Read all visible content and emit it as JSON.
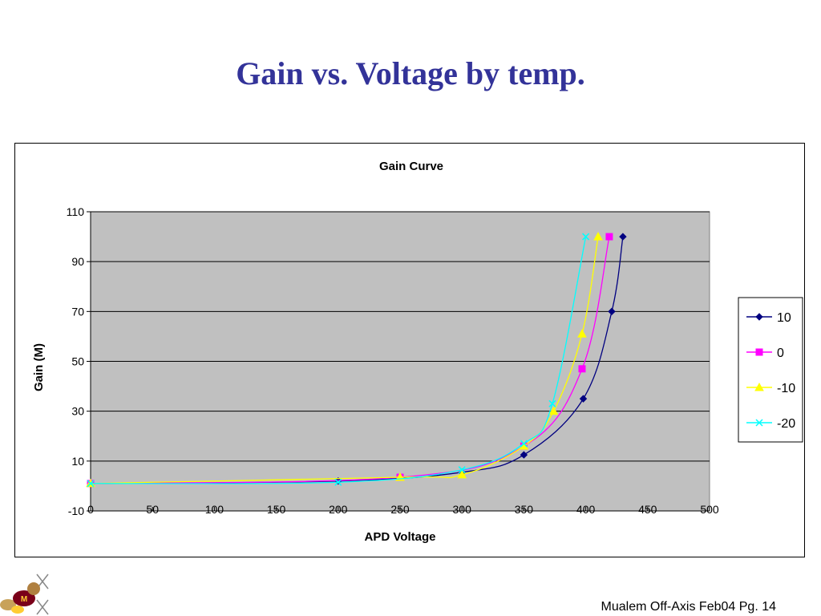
{
  "slide": {
    "title": "Gain vs. Voltage by temp.",
    "footer": "Mualem Off-Axis Feb04 Pg. 14",
    "logo_icon": "gopher-mascot-icon"
  },
  "chart_data": {
    "type": "line",
    "title": "Gain Curve",
    "xlabel": "APD Voltage",
    "ylabel": "Gain (M)",
    "xlim": [
      0,
      500
    ],
    "ylim": [
      -10,
      110
    ],
    "xticks": [
      0,
      50,
      100,
      150,
      200,
      250,
      300,
      350,
      400,
      450,
      500
    ],
    "yticks": [
      -10,
      10,
      30,
      50,
      70,
      90,
      110
    ],
    "grid": "horizontal",
    "plot_background": "#c0c0c0",
    "legend_position": "right",
    "series": [
      {
        "name": "10",
        "color": "#000080",
        "marker": "diamond",
        "points": [
          [
            0,
            1
          ],
          [
            200,
            2
          ],
          [
            300,
            5.5
          ],
          [
            350,
            12.5
          ],
          [
            398,
            35
          ],
          [
            421,
            70
          ],
          [
            430,
            100
          ]
        ]
      },
      {
        "name": "0",
        "color": "#ff00ff",
        "marker": "square",
        "points": [
          [
            0,
            1
          ],
          [
            250,
            3.5
          ],
          [
            350,
            16
          ],
          [
            397,
            47
          ],
          [
            419,
            100
          ]
        ]
      },
      {
        "name": "-10",
        "color": "#ffff00",
        "marker": "triangle",
        "points": [
          [
            0,
            1
          ],
          [
            250,
            3.5
          ],
          [
            300,
            4.5
          ],
          [
            350,
            16
          ],
          [
            374,
            30
          ],
          [
            397,
            61
          ],
          [
            410,
            100
          ]
        ]
      },
      {
        "name": "-20",
        "color": "#00ffff",
        "marker": "x",
        "points": [
          [
            0,
            1
          ],
          [
            200,
            1.5
          ],
          [
            300,
            6.5
          ],
          [
            350,
            17
          ],
          [
            373,
            33
          ],
          [
            400,
            100
          ]
        ]
      }
    ]
  }
}
